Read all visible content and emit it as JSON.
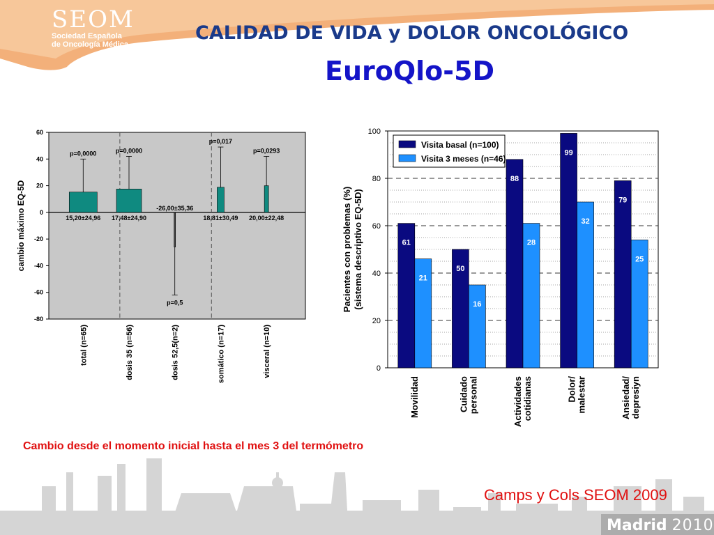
{
  "header": {
    "logo_text": "SEOM",
    "logo_subtitle_1": "Sociedad Española",
    "logo_subtitle_2": "de Oncología Médica",
    "title": "CALIDAD DE VIDA  y DOLOR ONCOLÓGICO",
    "subtitle": "EuroQlo-5D"
  },
  "caption": "Cambio desde el momento inicial hasta el mes 3 del termómetro",
  "citation": "Camps y Cols SEOM 2009",
  "footer": {
    "city": "Madrid",
    "year": "2010"
  },
  "colors": {
    "title": "#1a3a8a",
    "subtitle": "#1414c8",
    "caption": "#e01010",
    "teal_bar": "#0f8a80",
    "navy_bar": "#0a0a80",
    "blue_bar": "#1e90ff",
    "banner": "#f0a060"
  },
  "chart_data": [
    {
      "type": "bar",
      "ylabel": "cambio máximo EQ-5D",
      "ylim": [
        -80,
        60
      ],
      "yticks": [
        60,
        40,
        20,
        0,
        -20,
        -40,
        -60,
        -80
      ],
      "categories": [
        "total (n=65)",
        "dosis 35 (n=56)",
        "dosis 52,5(n=2)",
        "somático (n=17)",
        "visceral (n=10)"
      ],
      "values": [
        15.2,
        17.48,
        -26.0,
        18.81,
        20.0
      ],
      "error_upper": [
        40,
        42,
        -62,
        49,
        42
      ],
      "value_labels": [
        "15,20±24,96",
        "17,48±24,90",
        "-26,00±35,36",
        "18,81±30,49",
        "20,00±22,48"
      ],
      "p_values": [
        "p=0,0000",
        "p=0,0000",
        "p=0,5",
        "p=0,017",
        "p=0,0293"
      ],
      "grid": false,
      "background": "#c8c8c8"
    },
    {
      "type": "bar",
      "ylabel": "Pacientes con problemas (%) (sistema descriptivo EQ-5D)",
      "ylabel_lines": [
        "Pacientes con problemas (%)",
        "(sistema descriptivo EQ-5D)"
      ],
      "ylim": [
        0,
        100
      ],
      "yticks": [
        0,
        20,
        40,
        60,
        80,
        100
      ],
      "categories": [
        [
          "Movilidad"
        ],
        [
          "Cuidado",
          "personal"
        ],
        [
          "Actividades",
          "cotidianas"
        ],
        [
          "Dolor/",
          "malestar"
        ],
        [
          "Ansiedad/",
          "depresiyn"
        ]
      ],
      "series": [
        {
          "name": "Visita basal (n=100)",
          "values": [
            61,
            50,
            88,
            99,
            79
          ],
          "labels": [
            "61",
            "50",
            "88",
            "99",
            "79"
          ]
        },
        {
          "name": "Visita 3 meses (n=46)",
          "values": [
            46,
            35,
            61,
            70,
            54
          ],
          "labels": [
            "21",
            "16",
            "28",
            "32",
            "25"
          ]
        }
      ],
      "legend": "top-left",
      "grid": true
    }
  ]
}
